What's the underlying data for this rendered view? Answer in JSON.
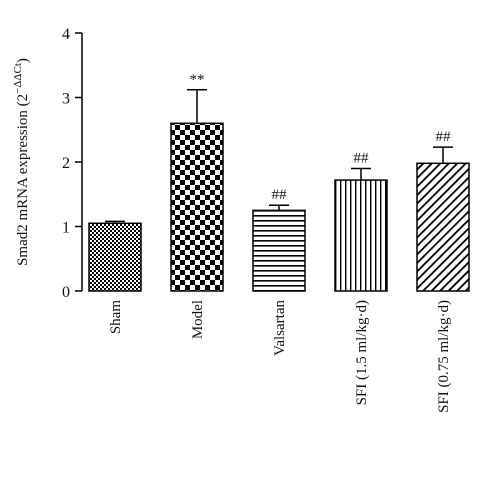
{
  "chart_data": {
    "type": "bar",
    "ylabel": "Smad2 mRNA expression (2",
    "ylabel_superscript": "−ΔΔCt",
    "ylabel_close": ")",
    "ylim": [
      0,
      4
    ],
    "yticks": [
      "0",
      "1",
      "2",
      "3",
      "4"
    ],
    "categories": [
      "Sham",
      "Model",
      "Valsartan",
      "SFI (1.5 ml/kg·d)",
      "SFI (0.75 ml/kg·d)"
    ],
    "values": [
      1.05,
      2.6,
      1.25,
      1.72,
      1.98
    ],
    "error_upper": [
      1.08,
      3.12,
      1.33,
      1.9,
      2.23
    ],
    "annotations": [
      "",
      "**",
      "##",
      "##",
      "##"
    ],
    "patterns": [
      "fine-check",
      "checker",
      "horizontal-stripes",
      "vertical-stripes",
      "diagonal-stripes"
    ],
    "colors": {
      "bar_fill": "#000000",
      "bar_background": "#ffffff",
      "axis": "#000000"
    }
  }
}
